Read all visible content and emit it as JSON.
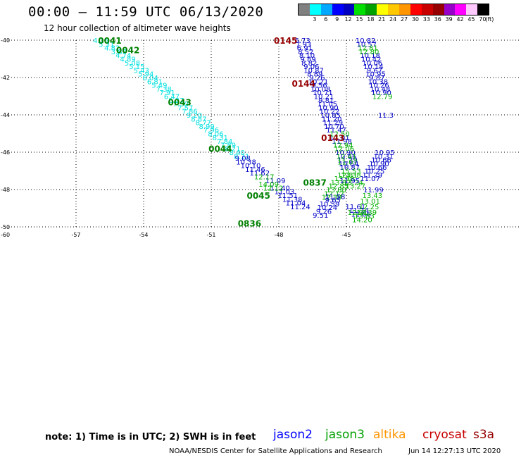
{
  "title": "00:00 – 11:59 UTC 06/13/2020",
  "subtitle": "12 hour collection of altimeter wave heights",
  "colorbar": {
    "unit": "(ft)",
    "colors": [
      "#808080",
      "#00ffff",
      "#00a8ff",
      "#0000ff",
      "#0000c0",
      "#00e000",
      "#00a000",
      "#ffff00",
      "#ffc800",
      "#ff9600",
      "#ff0000",
      "#c80000",
      "#960000",
      "#9600c8",
      "#ff00ff",
      "#ffc8ff",
      "#000000"
    ],
    "labels": [
      "3",
      "6",
      "9",
      "12",
      "15",
      "18",
      "21",
      "24",
      "27",
      "30",
      "33",
      "36",
      "39",
      "42",
      "45",
      "70"
    ]
  },
  "axes": {
    "lat_labels": [
      {
        "value": -40,
        "label": "-40"
      },
      {
        "value": -42,
        "label": "-42"
      },
      {
        "value": -44,
        "label": "-44"
      },
      {
        "value": -46,
        "label": "-46"
      },
      {
        "value": -48,
        "label": "-48"
      },
      {
        "value": -50,
        "label": "-50"
      }
    ],
    "lon_labels": [
      {
        "value": -60,
        "label": "-60"
      },
      {
        "value": -57,
        "label": "-57"
      },
      {
        "value": -54,
        "label": "-54"
      },
      {
        "value": -51,
        "label": "-51"
      },
      {
        "value": -48,
        "label": "-48"
      },
      {
        "value": -45,
        "label": "-45"
      }
    ]
  },
  "tracks": [
    {
      "satellite": "jason3",
      "color": "#00e0e0",
      "obs": [
        {
          "lon": -55.9,
          "lat": -40.0,
          "text": "4.16"
        },
        {
          "lon": -55.65,
          "lat": -40.2,
          "text": "5.31"
        },
        {
          "lon": -55.4,
          "lat": -40.4,
          "text": "4.82"
        },
        {
          "lon": -55.1,
          "lat": -40.6,
          "text": "3.87"
        },
        {
          "lon": -54.9,
          "lat": -40.8,
          "text": "4.74"
        },
        {
          "lon": -54.7,
          "lat": -41.0,
          "text": "4.89"
        },
        {
          "lon": -54.5,
          "lat": -41.2,
          "text": "5.08"
        },
        {
          "lon": -54.3,
          "lat": -41.4,
          "text": "5.15"
        },
        {
          "lon": -54.1,
          "lat": -41.6,
          "text": "5.43"
        },
        {
          "lon": -53.9,
          "lat": -41.8,
          "text": "5.94"
        },
        {
          "lon": -53.7,
          "lat": -42.0,
          "text": "6.04"
        },
        {
          "lon": -53.5,
          "lat": -42.2,
          "text": "6.81"
        },
        {
          "lon": -53.3,
          "lat": -42.4,
          "text": "5.49"
        },
        {
          "lon": -53.1,
          "lat": -42.6,
          "text": "7.38"
        },
        {
          "lon": -52.95,
          "lat": -42.8,
          "text": "7.91"
        },
        {
          "lon": -52.75,
          "lat": -43.0,
          "text": "6.47"
        },
        {
          "lon": -52.55,
          "lat": -43.2,
          "text": "6.27"
        },
        {
          "lon": -52.35,
          "lat": -43.4,
          "text": "7.30"
        },
        {
          "lon": -52.15,
          "lat": -43.6,
          "text": "7.57"
        },
        {
          "lon": -51.95,
          "lat": -43.8,
          "text": "7.86"
        },
        {
          "lon": -51.75,
          "lat": -44.0,
          "text": "9.20"
        },
        {
          "lon": -51.55,
          "lat": -44.2,
          "text": "8.87"
        },
        {
          "lon": -51.35,
          "lat": -44.4,
          "text": "8.77"
        },
        {
          "lon": -51.2,
          "lat": -44.6,
          "text": "8.99"
        },
        {
          "lon": -51.0,
          "lat": -44.8,
          "text": "7.96"
        },
        {
          "lon": -50.8,
          "lat": -45.0,
          "text": "8.06"
        },
        {
          "lon": -50.6,
          "lat": -45.2,
          "text": "8.31"
        },
        {
          "lon": -50.4,
          "lat": -45.4,
          "text": "7.84"
        },
        {
          "lon": -50.25,
          "lat": -45.6,
          "text": "7.89"
        },
        {
          "lon": -50.05,
          "lat": -45.8,
          "text": "8.21"
        },
        {
          "lon": -49.85,
          "lat": -46.0,
          "text": "8.40"
        },
        {
          "lon": -49.65,
          "lat": -46.2,
          "text": "8.31"
        }
      ]
    },
    {
      "satellite": "jason2",
      "color": "#0000c8",
      "obs": [
        {
          "lon": -49.6,
          "lat": -46.3,
          "text": "9.08"
        },
        {
          "lon": -49.45,
          "lat": -46.5,
          "text": "10.38"
        },
        {
          "lon": -49.25,
          "lat": -46.7,
          "text": "10.10"
        },
        {
          "lon": -49.05,
          "lat": -46.9,
          "text": "11.46"
        },
        {
          "lon": -48.85,
          "lat": -47.1,
          "text": "11.62"
        },
        {
          "lon": -48.15,
          "lat": -47.5,
          "text": "11.09"
        },
        {
          "lon": -47.95,
          "lat": -47.9,
          "text": "11.40"
        },
        {
          "lon": -47.75,
          "lat": -48.1,
          "text": "11.03"
        },
        {
          "lon": -47.6,
          "lat": -48.3,
          "text": "11.51"
        },
        {
          "lon": -47.4,
          "lat": -48.5,
          "text": "11.38"
        },
        {
          "lon": -47.25,
          "lat": -48.7,
          "text": "11.04"
        },
        {
          "lon": -47.05,
          "lat": -48.9,
          "text": "11.24"
        }
      ]
    },
    {
      "satellite": "jason3",
      "color": "#00b000",
      "obs": [
        {
          "lon": -48.65,
          "lat": -47.3,
          "text": "12.17"
        },
        {
          "lon": -48.45,
          "lat": -47.7,
          "text": "14.09"
        },
        {
          "lon": -48.25,
          "lat": -47.9,
          "text": "12.12"
        }
      ]
    },
    {
      "satellite": "jason2",
      "color": "#0000c8",
      "obs": [
        {
          "lon": -46.95,
          "lat": -40.0,
          "text": "6.73"
        },
        {
          "lon": -46.9,
          "lat": -40.2,
          "text": "7.93"
        },
        {
          "lon": -46.85,
          "lat": -40.4,
          "text": "6.91"
        },
        {
          "lon": -46.8,
          "lat": -40.6,
          "text": "8.52"
        },
        {
          "lon": -46.75,
          "lat": -40.8,
          "text": "8.10"
        },
        {
          "lon": -46.7,
          "lat": -41.0,
          "text": "9.89"
        },
        {
          "lon": -46.65,
          "lat": -41.2,
          "text": "8.82"
        },
        {
          "lon": -46.55,
          "lat": -41.4,
          "text": "9.06"
        },
        {
          "lon": -46.45,
          "lat": -41.6,
          "text": "10.87"
        },
        {
          "lon": -46.4,
          "lat": -41.8,
          "text": "8.89"
        },
        {
          "lon": -46.3,
          "lat": -42.0,
          "text": "9.26"
        },
        {
          "lon": -46.25,
          "lat": -42.2,
          "text": "10.21"
        },
        {
          "lon": -46.2,
          "lat": -42.4,
          "text": "9.56"
        },
        {
          "lon": -46.15,
          "lat": -42.6,
          "text": "10.08"
        },
        {
          "lon": -46.05,
          "lat": -42.8,
          "text": "10.71"
        },
        {
          "lon": -46.0,
          "lat": -43.0,
          "text": "10.21"
        },
        {
          "lon": -45.9,
          "lat": -43.2,
          "text": "9.81"
        },
        {
          "lon": -45.85,
          "lat": -43.4,
          "text": "11.05"
        },
        {
          "lon": -45.8,
          "lat": -43.6,
          "text": "10.90"
        },
        {
          "lon": -45.75,
          "lat": -43.8,
          "text": "10.22"
        },
        {
          "lon": -45.7,
          "lat": -44.0,
          "text": "10.85"
        },
        {
          "lon": -45.65,
          "lat": -44.2,
          "text": "11.20"
        },
        {
          "lon": -45.6,
          "lat": -44.4,
          "text": "11.29"
        },
        {
          "lon": -45.55,
          "lat": -44.6,
          "text": "10.70"
        },
        {
          "lon": -45.45,
          "lat": -44.8,
          "text": "11.47"
        },
        {
          "lon": -45.3,
          "lat": -45.2,
          "text": "11.01"
        },
        {
          "lon": -45.2,
          "lat": -45.4,
          "text": "11.98"
        },
        {
          "lon": -45.05,
          "lat": -46.0,
          "text": "10.90"
        },
        {
          "lon": -45.0,
          "lat": -46.2,
          "text": "10.66"
        },
        {
          "lon": -44.95,
          "lat": -46.4,
          "text": "11.29"
        },
        {
          "lon": -44.9,
          "lat": -46.6,
          "text": "10.64"
        },
        {
          "lon": -44.85,
          "lat": -46.8,
          "text": "10.87"
        }
      ]
    },
    {
      "satellite": "jason3",
      "color": "#00b000",
      "obs": [
        {
          "lon": -45.3,
          "lat": -45.0,
          "text": "12.50"
        },
        {
          "lon": -45.15,
          "lat": -45.6,
          "text": "12.94"
        },
        {
          "lon": -45.1,
          "lat": -45.8,
          "text": "12.06"
        },
        {
          "lon": -45.0,
          "lat": -46.2,
          "text": "12.41"
        },
        {
          "lon": -44.95,
          "lat": -46.5,
          "text": "11.07"
        },
        {
          "lon": -44.8,
          "lat": -47.2,
          "text": "13.38"
        },
        {
          "lon": -44.7,
          "lat": -47.6,
          "text": "13.24"
        },
        {
          "lon": -44.6,
          "lat": -47.8,
          "text": "13.27"
        }
      ]
    },
    {
      "satellite": "jason3",
      "color": "#00b000",
      "obs": [
        {
          "lon": -44.8,
          "lat": -47.0,
          "text": "15.53"
        },
        {
          "lon": -44.95,
          "lat": -47.2,
          "text": "12.81"
        },
        {
          "lon": -45.1,
          "lat": -47.4,
          "text": "13.98"
        },
        {
          "lon": -45.25,
          "lat": -47.6,
          "text": "13.62"
        },
        {
          "lon": -45.35,
          "lat": -47.8,
          "text": "12.85"
        },
        {
          "lon": -45.45,
          "lat": -48.0,
          "text": "13.80"
        },
        {
          "lon": -45.55,
          "lat": -48.2,
          "text": "12.12"
        },
        {
          "lon": -45.65,
          "lat": -48.4,
          "text": "12.39"
        }
      ]
    },
    {
      "satellite": "jason2",
      "color": "#0000c8",
      "obs": [
        {
          "lon": -44.85,
          "lat": -47.5,
          "text": "11.95"
        },
        {
          "lon": -45.5,
          "lat": -48.35,
          "text": "11.58"
        },
        {
          "lon": -45.6,
          "lat": -48.55,
          "text": "9.65"
        },
        {
          "lon": -45.75,
          "lat": -48.75,
          "text": "10.59"
        },
        {
          "lon": -45.85,
          "lat": -48.95,
          "text": "10.24"
        },
        {
          "lon": -46.0,
          "lat": -49.15,
          "text": "9.26"
        },
        {
          "lon": -46.15,
          "lat": -49.35,
          "text": "9.51"
        }
      ]
    },
    {
      "satellite": "jason2",
      "color": "#0000c8",
      "obs": [
        {
          "lon": -44.6,
          "lat": -48.9,
          "text": "11.61"
        },
        {
          "lon": -44.45,
          "lat": -49.1,
          "text": "11.74"
        },
        {
          "lon": -44.35,
          "lat": -49.3,
          "text": "11.06"
        }
      ]
    },
    {
      "satellite": "jason3",
      "color": "#00b000",
      "obs": [
        {
          "lon": -44.5,
          "lat": -49.2,
          "text": "12.91"
        }
      ]
    },
    {
      "satellite": "jason2",
      "color": "#0000c8",
      "obs": [
        {
          "lon": -44.15,
          "lat": -40.0,
          "text": "10.82"
        },
        {
          "lon": -44.1,
          "lat": -40.2,
          "text": "10.57"
        },
        {
          "lon": -43.95,
          "lat": -40.8,
          "text": "10.18"
        },
        {
          "lon": -43.9,
          "lat": -41.0,
          "text": "10.42"
        },
        {
          "lon": -43.85,
          "lat": -41.2,
          "text": "10.06"
        },
        {
          "lon": -43.8,
          "lat": -41.4,
          "text": "10.14"
        },
        {
          "lon": -43.75,
          "lat": -41.6,
          "text": "9.67"
        },
        {
          "lon": -43.7,
          "lat": -41.8,
          "text": "10.95"
        },
        {
          "lon": -43.65,
          "lat": -42.0,
          "text": "9.87"
        },
        {
          "lon": -43.6,
          "lat": -42.2,
          "text": "10.38"
        },
        {
          "lon": -43.55,
          "lat": -42.4,
          "text": "10.26"
        },
        {
          "lon": -43.5,
          "lat": -42.6,
          "text": "10.48"
        },
        {
          "lon": -43.45,
          "lat": -42.8,
          "text": "10.90"
        },
        {
          "lon": -43.25,
          "lat": -44.0,
          "text": "11.3"
        },
        {
          "lon": -43.3,
          "lat": -46.0,
          "text": "10.95"
        },
        {
          "lon": -43.35,
          "lat": -46.2,
          "text": "10.31"
        },
        {
          "lon": -43.45,
          "lat": -46.4,
          "text": "10.66"
        },
        {
          "lon": -43.55,
          "lat": -46.6,
          "text": "10.90"
        },
        {
          "lon": -43.65,
          "lat": -46.8,
          "text": "10.66"
        },
        {
          "lon": -43.75,
          "lat": -47.0,
          "text": "10.25"
        },
        {
          "lon": -43.85,
          "lat": -47.2,
          "text": "11.29"
        },
        {
          "lon": -43.95,
          "lat": -47.4,
          "text": "11.07"
        },
        {
          "lon": -43.8,
          "lat": -48.0,
          "text": "11.99"
        }
      ]
    },
    {
      "satellite": "jason3",
      "color": "#00b000",
      "obs": [
        {
          "lon": -44.05,
          "lat": -40.4,
          "text": "12.81"
        },
        {
          "lon": -44.0,
          "lat": -40.6,
          "text": "12.80"
        },
        {
          "lon": -43.4,
          "lat": -43.0,
          "text": "12.79"
        },
        {
          "lon": -43.85,
          "lat": -48.3,
          "text": "13.43"
        },
        {
          "lon": -43.95,
          "lat": -48.6,
          "text": "13.01"
        },
        {
          "lon": -44.0,
          "lat": -48.9,
          "text": "12.25"
        },
        {
          "lon": -44.1,
          "lat": -49.2,
          "text": "14.39"
        },
        {
          "lon": -44.2,
          "lat": -49.4,
          "text": "13.83"
        },
        {
          "lon": -44.3,
          "lat": -49.6,
          "text": "14.20"
        }
      ]
    }
  ],
  "pass_labels": [
    {
      "lon": -55.5,
      "lat": -40.0,
      "text": "0041",
      "color": "#008000"
    },
    {
      "lon": -54.7,
      "lat": -40.5,
      "text": "0042",
      "color": "#008000"
    },
    {
      "lon": -52.4,
      "lat": -43.3,
      "text": "0043",
      "color": "#008000"
    },
    {
      "lon": -50.6,
      "lat": -45.8,
      "text": "0044",
      "color": "#008000"
    },
    {
      "lon": -47.7,
      "lat": -40.0,
      "text": "0145",
      "color": "#960000"
    },
    {
      "lon": -46.9,
      "lat": -42.3,
      "text": "0144",
      "color": "#960000"
    },
    {
      "lon": -45.6,
      "lat": -45.2,
      "text": "0143",
      "color": "#960000"
    },
    {
      "lon": -46.4,
      "lat": -47.6,
      "text": "0837",
      "color": "#008000"
    },
    {
      "lon": -48.9,
      "lat": -48.3,
      "text": "0045",
      "color": "#008000"
    },
    {
      "lon": -49.3,
      "lat": -49.8,
      "text": "0836",
      "color": "#008000"
    }
  ],
  "note": "note: 1) Time is in UTC; 2) SWH is in feet",
  "satellites": [
    {
      "name": "jason2",
      "color": "#0000ff"
    },
    {
      "name": "jason3",
      "color": "#00a000"
    },
    {
      "name": "altika",
      "color": "#ff9600"
    },
    {
      "name": "cryosat",
      "color": "#c80000"
    },
    {
      "name": "s3a",
      "color": "#960000"
    }
  ],
  "footer_left": "NOAA/NESDIS Center for Satellite Applications and Research",
  "footer_right": "Jun 14 12:27:13 UTC 2020"
}
